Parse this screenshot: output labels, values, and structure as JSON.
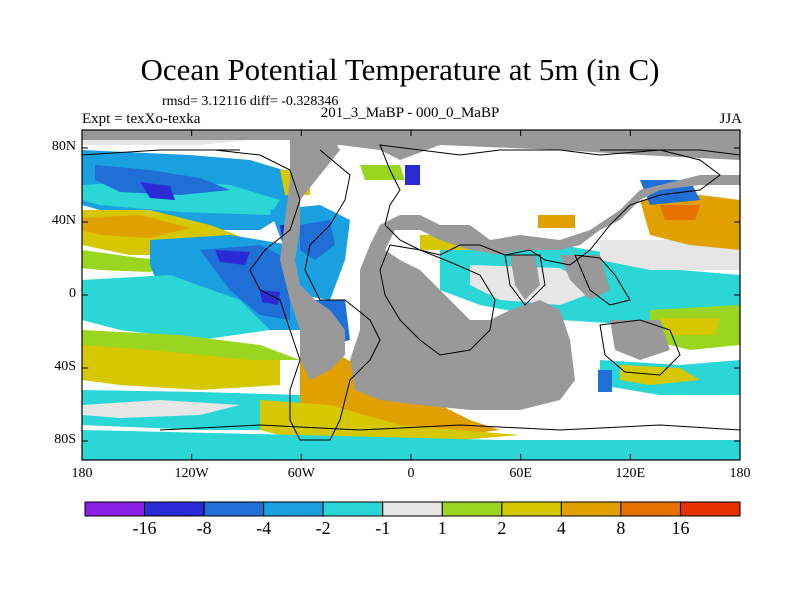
{
  "title": "Ocean Potential Temperature at 5m (in C)",
  "stats": "rmsd= 3.12116 diff= -0.328346",
  "experiment": "Expt = texXo-texka",
  "comparison": "201_3_MaBP - 000_0_MaBP",
  "season": "JJA",
  "colors": {
    "land": "#999999",
    "background": "#ffffff",
    "bins": [
      "#8a1fe6",
      "#2b2bd6",
      "#1f6fd6",
      "#1aa0e0",
      "#2bd6d6",
      "#e6e6e6",
      "#9ad61f",
      "#d6c800",
      "#e0a000",
      "#e67000",
      "#e63000"
    ]
  },
  "lat_ticks": [
    "80N",
    "40N",
    "0",
    "40S",
    "80S"
  ],
  "lon_ticks": [
    "180",
    "120W",
    "60W",
    "0",
    "60E",
    "120E",
    "180"
  ],
  "colorbar": {
    "labels": [
      "-16",
      "-8",
      "-4",
      "-2",
      "-1",
      "1",
      "2",
      "4",
      "8",
      "16"
    ]
  }
}
